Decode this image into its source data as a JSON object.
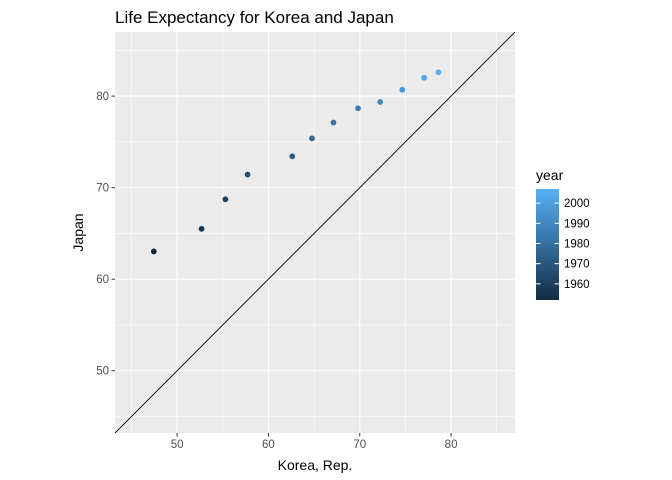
{
  "chart_data": {
    "type": "scatter",
    "title": "Life Expectancy for Korea and Japan",
    "xlabel": "Korea, Rep.",
    "ylabel": "Japan",
    "xlim": [
      43.2,
      87.0
    ],
    "ylim": [
      43.2,
      87.0
    ],
    "x_ticks": [
      50,
      60,
      70,
      80
    ],
    "y_ticks": [
      50,
      60,
      70,
      80
    ],
    "grid": true,
    "reference_line": {
      "type": "identity",
      "slope": 1,
      "intercept": 0
    },
    "legend": {
      "title": "year",
      "position": "right",
      "breaks": [
        1960,
        1970,
        1980,
        1990,
        2000
      ],
      "range": [
        1952,
        2007
      ],
      "color_low": "#132b43",
      "color_high": "#56b1f7"
    },
    "points": [
      {
        "year": 1952,
        "x": 47.45,
        "y": 63.03
      },
      {
        "year": 1957,
        "x": 52.68,
        "y": 65.5
      },
      {
        "year": 1962,
        "x": 55.29,
        "y": 68.73
      },
      {
        "year": 1967,
        "x": 57.72,
        "y": 71.43
      },
      {
        "year": 1972,
        "x": 62.61,
        "y": 73.42
      },
      {
        "year": 1977,
        "x": 64.77,
        "y": 75.38
      },
      {
        "year": 1982,
        "x": 67.12,
        "y": 77.11
      },
      {
        "year": 1987,
        "x": 69.81,
        "y": 78.67
      },
      {
        "year": 1992,
        "x": 72.24,
        "y": 79.36
      },
      {
        "year": 1997,
        "x": 74.65,
        "y": 80.69
      },
      {
        "year": 2002,
        "x": 77.05,
        "y": 82.0
      },
      {
        "year": 2007,
        "x": 78.62,
        "y": 82.6
      }
    ]
  },
  "colors": {
    "panel_background": "#ebebeb",
    "grid_major": "#ffffff",
    "reference_line": "#000000"
  }
}
